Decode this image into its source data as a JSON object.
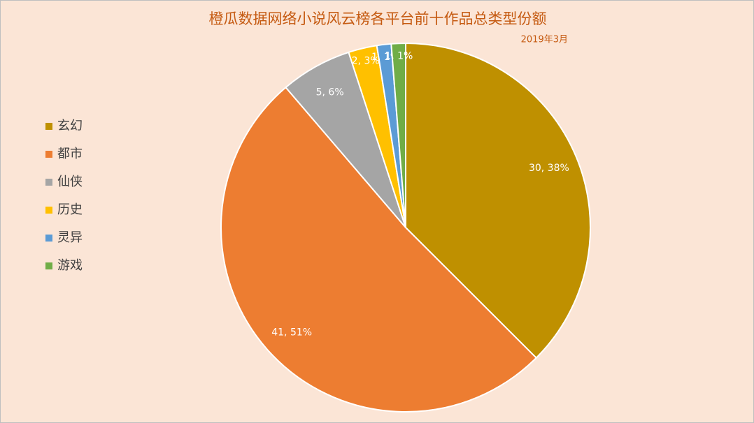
{
  "chart_data": {
    "type": "pie",
    "title": "橙瓜数据网络小说风云榜各平台前十作品总类型份额",
    "subtitle": "2019年3月",
    "categories": [
      "玄幻",
      "都市",
      "仙侠",
      "历史",
      "灵异",
      "游戏"
    ],
    "values": [
      30,
      41,
      5,
      2,
      1,
      1
    ],
    "value_labels": [
      "30, 38%",
      "41, 51%",
      "5, 6%",
      "2, 3%",
      "1, 1%",
      "1, 1%"
    ],
    "colors": [
      "#bf9000",
      "#ed7d31",
      "#a5a5a5",
      "#ffc000",
      "#5b9bd5",
      "#70ad47"
    ],
    "legend": "left"
  }
}
